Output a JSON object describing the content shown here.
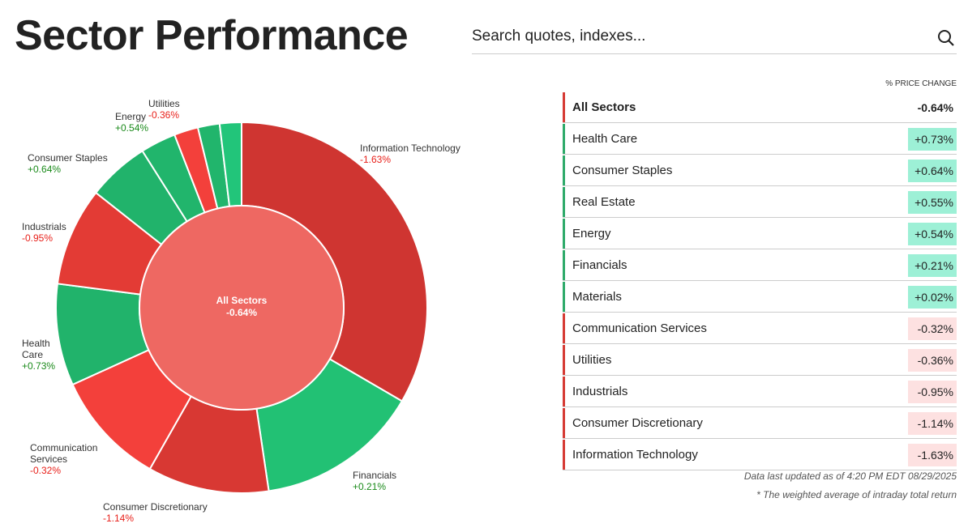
{
  "header": {
    "title": "Sector Performance",
    "search_placeholder": "Search quotes, indexes..."
  },
  "chart_data": {
    "type": "pie",
    "subtype": "donut-with-center",
    "center": {
      "label": "All Sectors",
      "value": "-0.64%",
      "color": "#ee6862"
    },
    "slices": [
      {
        "name": "Information Technology",
        "change": "-1.63%",
        "weight_pct": 33.5,
        "color": "#cf3531"
      },
      {
        "name": "Financials",
        "change": "+0.21%",
        "weight_pct": 14.3,
        "color": "#22c174"
      },
      {
        "name": "Consumer Discretionary",
        "change": "-1.14%",
        "weight_pct": 10.6,
        "color": "#d83833"
      },
      {
        "name": "Communication Services",
        "change": "-0.32%",
        "weight_pct": 10.0,
        "color": "#f3403b"
      },
      {
        "name": "Health Care",
        "change": "+0.73%",
        "weight_pct": 8.9,
        "color": "#21b36b"
      },
      {
        "name": "Industrials",
        "change": "-0.95%",
        "weight_pct": 8.6,
        "color": "#e33b35"
      },
      {
        "name": "Consumer Staples",
        "change": "+0.64%",
        "weight_pct": 5.4,
        "color": "#21b36b"
      },
      {
        "name": "Energy",
        "change": "+0.54%",
        "weight_pct": 3.1,
        "color": "#21b56c"
      },
      {
        "name": "Utilities",
        "change": "-0.36%",
        "weight_pct": 2.1,
        "color": "#f3403b"
      },
      {
        "name": "Real Estate",
        "change": "+0.55%",
        "weight_pct": 1.9,
        "color": "#21b56c"
      },
      {
        "name": "Materials",
        "change": "+0.02%",
        "weight_pct": 1.9,
        "color": "#22c57a"
      }
    ],
    "labels_shown": [
      "Information Technology",
      "Financials",
      "Consumer Discretionary",
      "Communication Services",
      "Health Care",
      "Industrials",
      "Consumer Staples",
      "Energy",
      "Utilities"
    ],
    "legend": "none"
  },
  "label_text": {
    "health_care": [
      "Health",
      "Care"
    ],
    "communication_services": [
      "Communication",
      "Services"
    ]
  },
  "table": {
    "header": "% PRICE CHANGE",
    "rows": [
      {
        "name": "All Sectors",
        "value": "-0.64%"
      },
      {
        "name": "Health Care",
        "value": "+0.73%"
      },
      {
        "name": "Consumer Staples",
        "value": "+0.64%"
      },
      {
        "name": "Real Estate",
        "value": "+0.55%"
      },
      {
        "name": "Energy",
        "value": "+0.54%"
      },
      {
        "name": "Financials",
        "value": "+0.21%"
      },
      {
        "name": "Materials",
        "value": "+0.02%"
      },
      {
        "name": "Communication Services",
        "value": "-0.32%"
      },
      {
        "name": "Utilities",
        "value": "-0.36%"
      },
      {
        "name": "Industrials",
        "value": "-0.95%"
      },
      {
        "name": "Consumer Discretionary",
        "value": "-1.14%"
      },
      {
        "name": "Information Technology",
        "value": "-1.63%"
      }
    ],
    "colors": {
      "up_bar": "#2eaa6a",
      "down_bar": "#d63b35",
      "up_bg": "#9df0d6",
      "down_bg": "#fde1e1"
    }
  },
  "footer": {
    "updated": "Data last updated as of 4:20 PM EDT 08/29/2025",
    "note": "* The weighted average of intraday total return"
  }
}
